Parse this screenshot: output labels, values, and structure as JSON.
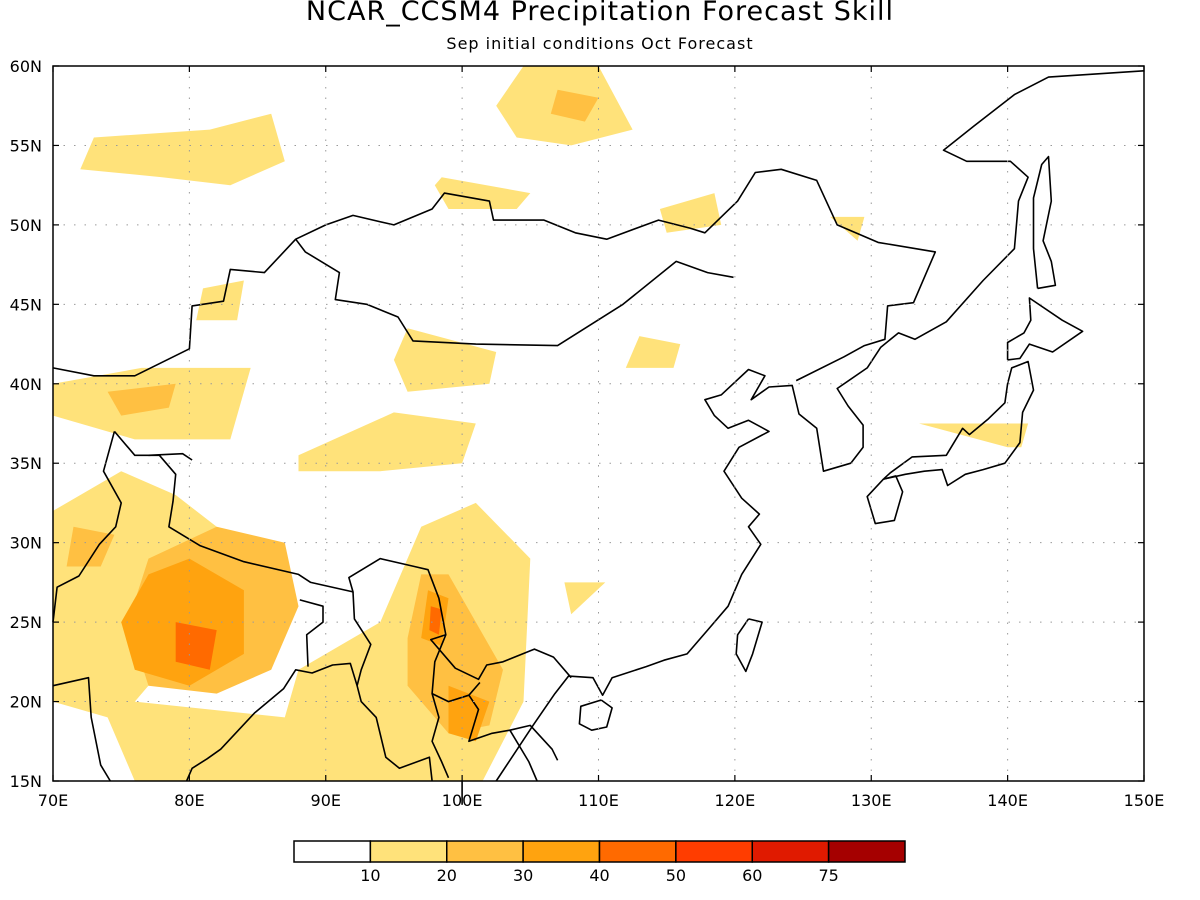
{
  "title": "NCAR_CCSM4 Precipitation Forecast Skill",
  "subtitle": "Sep initial conditions  Oct Forecast",
  "map": {
    "lon_range": [
      70,
      150
    ],
    "lat_range": [
      15,
      60
    ],
    "lon_ticks": [
      {
        "value": 70,
        "label": "70E"
      },
      {
        "value": 80,
        "label": "80E"
      },
      {
        "value": 90,
        "label": "90E"
      },
      {
        "value": 100,
        "label": "100E"
      },
      {
        "value": 110,
        "label": "110E"
      },
      {
        "value": 120,
        "label": "120E"
      },
      {
        "value": 130,
        "label": "130E"
      },
      {
        "value": 140,
        "label": "140E"
      },
      {
        "value": 150,
        "label": "150E"
      }
    ],
    "lat_ticks": [
      {
        "value": 15,
        "label": "15N"
      },
      {
        "value": 20,
        "label": "20N"
      },
      {
        "value": 25,
        "label": "25N"
      },
      {
        "value": 30,
        "label": "30N"
      },
      {
        "value": 35,
        "label": "35N"
      },
      {
        "value": 40,
        "label": "40N"
      },
      {
        "value": 45,
        "label": "45N"
      },
      {
        "value": 50,
        "label": "50N"
      },
      {
        "value": 55,
        "label": "55N"
      },
      {
        "value": 60,
        "label": "60N"
      }
    ],
    "grid": "dotted"
  },
  "colorbar": {
    "colors": [
      "#ffffff",
      "#ffe27a",
      "#ffc042",
      "#ffa30f",
      "#ff6a00",
      "#ff3d00",
      "#e01a00",
      "#a50000"
    ],
    "labels": [
      "10",
      "20",
      "30",
      "40",
      "50",
      "60",
      "75"
    ]
  },
  "skill_regions": [
    {
      "level": 1,
      "points": [
        [
          81.5,
          56
        ],
        [
          86,
          57
        ],
        [
          87,
          54
        ],
        [
          83,
          52.5
        ],
        [
          78,
          53
        ],
        [
          72,
          53.5
        ],
        [
          73,
          55.5
        ]
      ]
    },
    {
      "level": 1,
      "points": [
        [
          76,
          20
        ],
        [
          87,
          19
        ],
        [
          88,
          22
        ],
        [
          94,
          25
        ],
        [
          97,
          31
        ],
        [
          101,
          32.5
        ],
        [
          105,
          29
        ],
        [
          104.5,
          20
        ],
        [
          101.5,
          15
        ],
        [
          76,
          15
        ],
        [
          74,
          19
        ],
        [
          70,
          20
        ],
        [
          70,
          32
        ],
        [
          75,
          34.5
        ],
        [
          79,
          33
        ],
        [
          82,
          31
        ],
        [
          78,
          22
        ]
      ]
    },
    {
      "level": 1,
      "points": [
        [
          76.5,
          41
        ],
        [
          84.5,
          41
        ],
        [
          83,
          36.5
        ],
        [
          76,
          36.5
        ],
        [
          70,
          38
        ],
        [
          70,
          40
        ]
      ]
    },
    {
      "level": 1,
      "points": [
        [
          88,
          35.5
        ],
        [
          95,
          38.2
        ],
        [
          101,
          37.5
        ],
        [
          100,
          35
        ],
        [
          94,
          34.5
        ],
        [
          88,
          34.5
        ]
      ]
    },
    {
      "level": 1,
      "points": [
        [
          96,
          43.5
        ],
        [
          102.5,
          42
        ],
        [
          102,
          40
        ],
        [
          96,
          39.5
        ],
        [
          95,
          41.5
        ]
      ]
    },
    {
      "level": 1,
      "points": [
        [
          83.5,
          44
        ],
        [
          80.5,
          44
        ],
        [
          81,
          46
        ],
        [
          84,
          46.5
        ]
      ]
    },
    {
      "level": 1,
      "points": [
        [
          104.5,
          60
        ],
        [
          110,
          60
        ],
        [
          112.5,
          56
        ],
        [
          108,
          55
        ],
        [
          104,
          55.5
        ],
        [
          102.5,
          57.5
        ]
      ]
    },
    {
      "level": 1,
      "points": [
        [
          98.5,
          53
        ],
        [
          105,
          52
        ],
        [
          104,
          51
        ],
        [
          99,
          51
        ],
        [
          98,
          52.5
        ]
      ]
    },
    {
      "level": 1,
      "points": [
        [
          114.5,
          51
        ],
        [
          118.5,
          52
        ],
        [
          119,
          50
        ],
        [
          115,
          49.5
        ]
      ]
    },
    {
      "level": 1,
      "points": [
        [
          113,
          43
        ],
        [
          116,
          42.5
        ],
        [
          115.5,
          41
        ],
        [
          112,
          41
        ]
      ]
    },
    {
      "level": 1,
      "points": [
        [
          107.5,
          27.5
        ],
        [
          110.5,
          27.5
        ],
        [
          108,
          25.5
        ]
      ]
    },
    {
      "level": 1,
      "points": [
        [
          127,
          50.5
        ],
        [
          129.5,
          50.5
        ],
        [
          129,
          49
        ]
      ]
    },
    {
      "level": 1,
      "points": [
        [
          133.5,
          37.5
        ],
        [
          141.5,
          37.5
        ],
        [
          141,
          36
        ],
        [
          140,
          36
        ]
      ]
    },
    {
      "level": 2,
      "points": [
        [
          82,
          31
        ],
        [
          87,
          30
        ],
        [
          88,
          26
        ],
        [
          86,
          22
        ],
        [
          82,
          20.5
        ],
        [
          77,
          21
        ],
        [
          75.5,
          25
        ],
        [
          77,
          29
        ]
      ]
    },
    {
      "level": 2,
      "points": [
        [
          97,
          28
        ],
        [
          99,
          28
        ],
        [
          101,
          25
        ],
        [
          103,
          22
        ],
        [
          102,
          18.5
        ],
        [
          99,
          18
        ],
        [
          96,
          21
        ],
        [
          96,
          24
        ]
      ]
    },
    {
      "level": 2,
      "points": [
        [
          71.5,
          31
        ],
        [
          74.5,
          30.5
        ],
        [
          73.5,
          28.5
        ],
        [
          71,
          28.5
        ]
      ]
    },
    {
      "level": 2,
      "points": [
        [
          74,
          39.5
        ],
        [
          79,
          40
        ],
        [
          78.5,
          38.5
        ],
        [
          75,
          38
        ]
      ]
    },
    {
      "level": 2,
      "points": [
        [
          107,
          58.5
        ],
        [
          110,
          58
        ],
        [
          109,
          56.5
        ],
        [
          106.5,
          57
        ]
      ]
    },
    {
      "level": 3,
      "points": [
        [
          80,
          29
        ],
        [
          84,
          27
        ],
        [
          84,
          23
        ],
        [
          80,
          21
        ],
        [
          76,
          22
        ],
        [
          75,
          25
        ],
        [
          77,
          28
        ]
      ]
    },
    {
      "level": 3,
      "points": [
        [
          97.5,
          27
        ],
        [
          99,
          26.5
        ],
        [
          98.5,
          23.5
        ],
        [
          97,
          24
        ]
      ]
    },
    {
      "level": 3,
      "points": [
        [
          99,
          21
        ],
        [
          102,
          20
        ],
        [
          101,
          17.5
        ],
        [
          99,
          18
        ]
      ]
    },
    {
      "level": 4,
      "points": [
        [
          79,
          25
        ],
        [
          82,
          24.5
        ],
        [
          81.5,
          22
        ],
        [
          79,
          22.5
        ]
      ]
    },
    {
      "level": 4,
      "points": [
        [
          97.7,
          26
        ],
        [
          98.5,
          25.8
        ],
        [
          98.3,
          24.2
        ],
        [
          97.6,
          24.5
        ]
      ]
    }
  ]
}
